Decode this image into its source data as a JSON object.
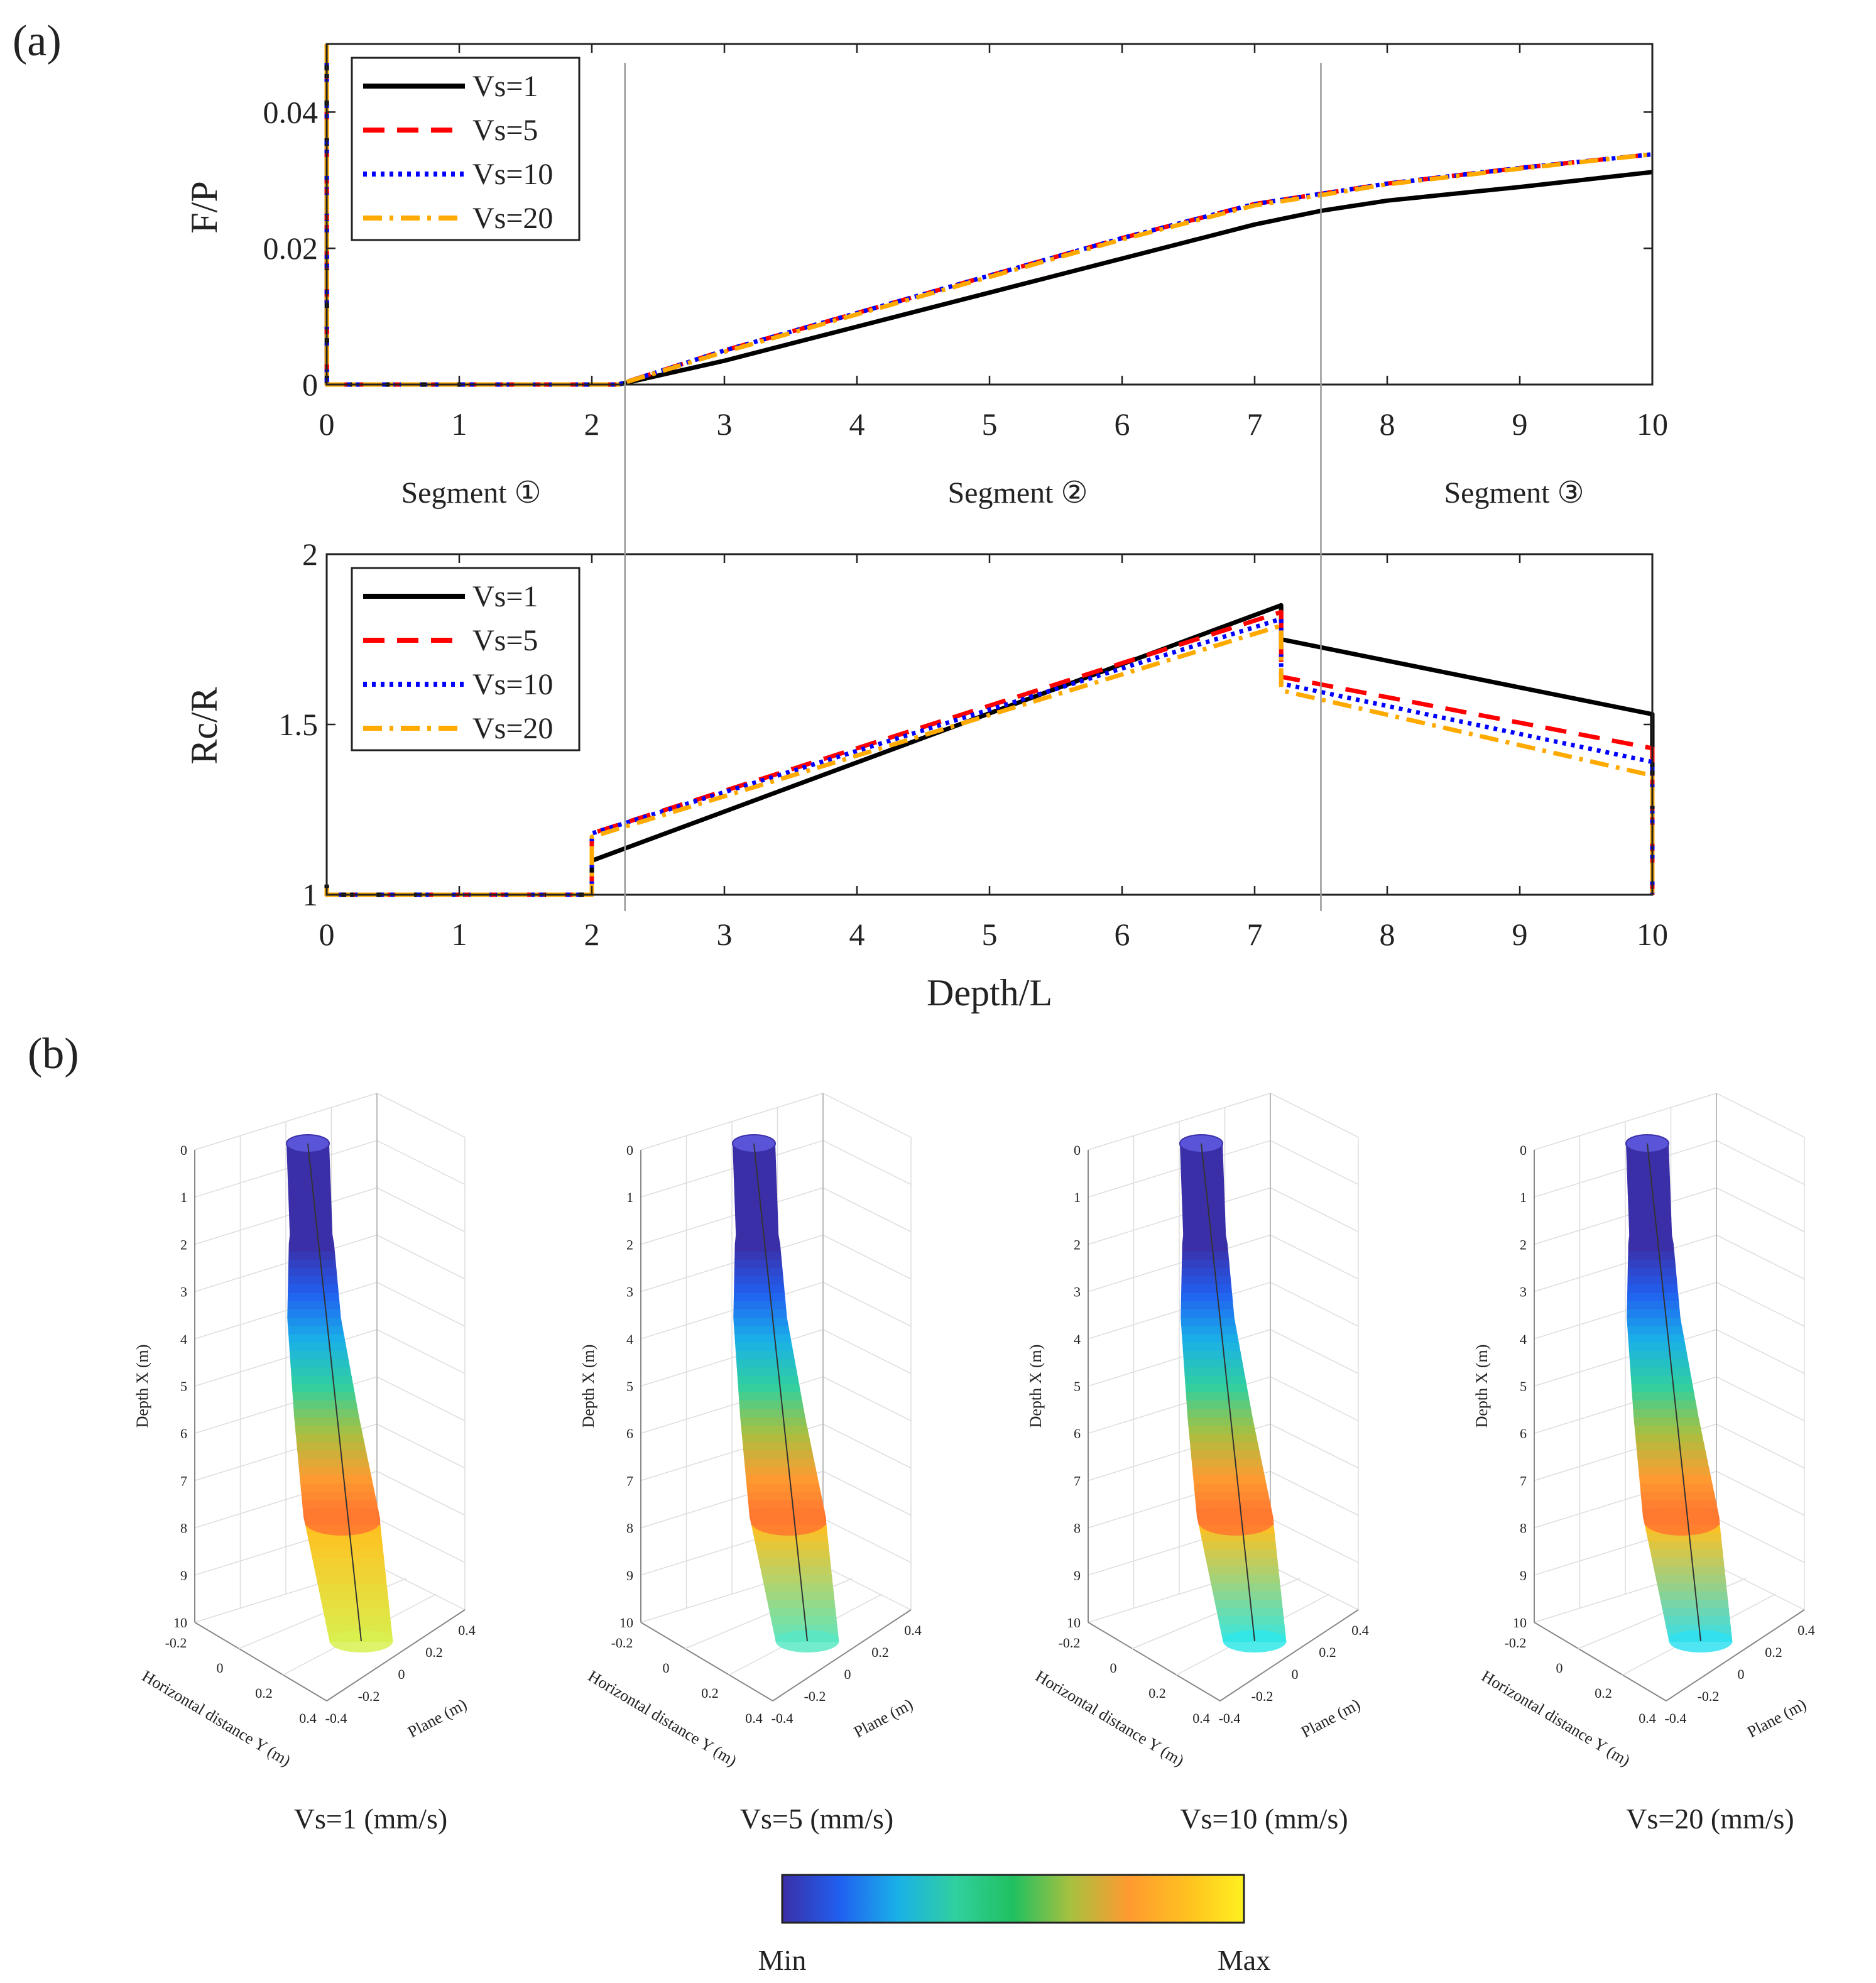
{
  "panels": {
    "a_label": "(a)",
    "b_label": "(b)"
  },
  "chart_data": [
    {
      "type": "line",
      "ylabel": "F/P",
      "xlim": [
        0,
        10
      ],
      "ylim": [
        0,
        0.05
      ],
      "xticks": [
        "0",
        "1",
        "2",
        "3",
        "4",
        "5",
        "6",
        "7",
        "8",
        "9",
        "10"
      ],
      "yticks": [
        "0",
        "0.02",
        "0.04"
      ],
      "ytick_values": [
        0,
        0.02,
        0.04
      ],
      "legend_position": "top-left",
      "segment_labels": [
        "Segment ①",
        "Segment ②",
        "Segment ③"
      ],
      "segment_boundaries": [
        2.25,
        7.5
      ],
      "series": [
        {
          "name": "Vs=1",
          "color": "#000000",
          "dash": "solid",
          "x": [
            0,
            0.001,
            0.05,
            2,
            2.2,
            3,
            4,
            5,
            6,
            7,
            7.5,
            8,
            9,
            10
          ],
          "y": [
            0.05,
            0,
            0,
            0,
            0,
            0.0035,
            0.0085,
            0.0135,
            0.0185,
            0.0235,
            0.0255,
            0.027,
            0.029,
            0.0312
          ]
        },
        {
          "name": "Vs=5",
          "color": "#ff0000",
          "dash": "dash",
          "x": [
            0,
            0.001,
            0.05,
            2,
            2.2,
            3,
            4,
            5,
            6,
            7,
            7.5,
            8,
            9,
            10
          ],
          "y": [
            0.05,
            0,
            0,
            0,
            0,
            0.005,
            0.0105,
            0.016,
            0.0215,
            0.0265,
            0.028,
            0.0295,
            0.0318,
            0.0338
          ]
        },
        {
          "name": "Vs=10",
          "color": "#0000ff",
          "dash": "dot",
          "x": [
            0,
            0.001,
            0.05,
            2,
            2.2,
            3,
            4,
            5,
            6,
            7,
            7.5,
            8,
            9,
            10
          ],
          "y": [
            0.05,
            0,
            0,
            0,
            0,
            0.005,
            0.0105,
            0.016,
            0.0215,
            0.0265,
            0.028,
            0.0295,
            0.0318,
            0.0338
          ]
        },
        {
          "name": "Vs=20",
          "color": "#ffaa00",
          "dash": "dashdot",
          "x": [
            0,
            0.001,
            0.05,
            2,
            2.2,
            3,
            4,
            5,
            6,
            7,
            7.5,
            8,
            9,
            10
          ],
          "y": [
            0.05,
            0,
            0,
            0,
            0,
            0.0048,
            0.0103,
            0.0158,
            0.0213,
            0.0263,
            0.0278,
            0.0294,
            0.0317,
            0.0338
          ]
        }
      ]
    },
    {
      "type": "line",
      "ylabel": "Rc/R",
      "xlabel": "Depth/L",
      "xlim": [
        0,
        10
      ],
      "ylim": [
        1,
        2
      ],
      "xticks": [
        "0",
        "1",
        "2",
        "3",
        "4",
        "5",
        "6",
        "7",
        "8",
        "9",
        "10"
      ],
      "yticks": [
        "1",
        "1.5",
        "2"
      ],
      "ytick_values": [
        1,
        1.5,
        2
      ],
      "legend_position": "top-left",
      "series": [
        {
          "name": "Vs=1",
          "color": "#000000",
          "dash": "solid",
          "x": [
            0,
            0,
            2,
            2,
            7.2,
            7.2,
            10,
            10
          ],
          "y": [
            1.03,
            1.0,
            1.0,
            1.1,
            1.85,
            1.75,
            1.53,
            1.0
          ]
        },
        {
          "name": "Vs=5",
          "color": "#ff0000",
          "dash": "dash",
          "x": [
            0,
            0,
            2,
            2,
            7.2,
            7.2,
            10,
            10
          ],
          "y": [
            1.02,
            1.0,
            1.0,
            1.18,
            1.83,
            1.64,
            1.43,
            1.0
          ]
        },
        {
          "name": "Vs=10",
          "color": "#0000ff",
          "dash": "dot",
          "x": [
            0,
            0,
            2,
            2,
            7.2,
            7.2,
            10,
            10
          ],
          "y": [
            1.02,
            1.0,
            1.0,
            1.18,
            1.81,
            1.62,
            1.39,
            1.0
          ]
        },
        {
          "name": "Vs=20",
          "color": "#ffaa00",
          "dash": "dashdot",
          "x": [
            0,
            0,
            2,
            2,
            7.2,
            7.2,
            10,
            10
          ],
          "y": [
            1.02,
            1.0,
            1.0,
            1.17,
            1.79,
            1.6,
            1.35,
            1.0
          ]
        }
      ]
    }
  ],
  "plots3d": {
    "depth_label": "Depth X (m)",
    "horiz_label": "Horizontal distance Y (m)",
    "plane_label": "Plane (m)",
    "depth_ticks": [
      "0",
      "1",
      "2",
      "3",
      "4",
      "5",
      "6",
      "7",
      "8",
      "9",
      "10"
    ],
    "horiz_ticks": [
      "-0.2",
      "0",
      "0.2",
      "0.4"
    ],
    "plane_ticks": [
      "-0.4",
      "-0.2",
      "0",
      "0.2",
      "0.4"
    ],
    "cases": [
      {
        "caption": "Vs=1 (mm/s)",
        "bottom_color": "#d8f050"
      },
      {
        "caption": "Vs=5 (mm/s)",
        "bottom_color": "#5ae8c4"
      },
      {
        "caption": "Vs=10 (mm/s)",
        "bottom_color": "#30e8e8"
      },
      {
        "caption": "Vs=20 (mm/s)",
        "bottom_color": "#30e0f0"
      }
    ],
    "colormap": [
      "#3b2fa8",
      "#2060f0",
      "#1ab0e8",
      "#30d0a0",
      "#20c060",
      "#a8c040",
      "#ff9a30",
      "#ffc020",
      "#fff020"
    ]
  },
  "colorbar": {
    "min_label": "Min",
    "max_label": "Max"
  }
}
